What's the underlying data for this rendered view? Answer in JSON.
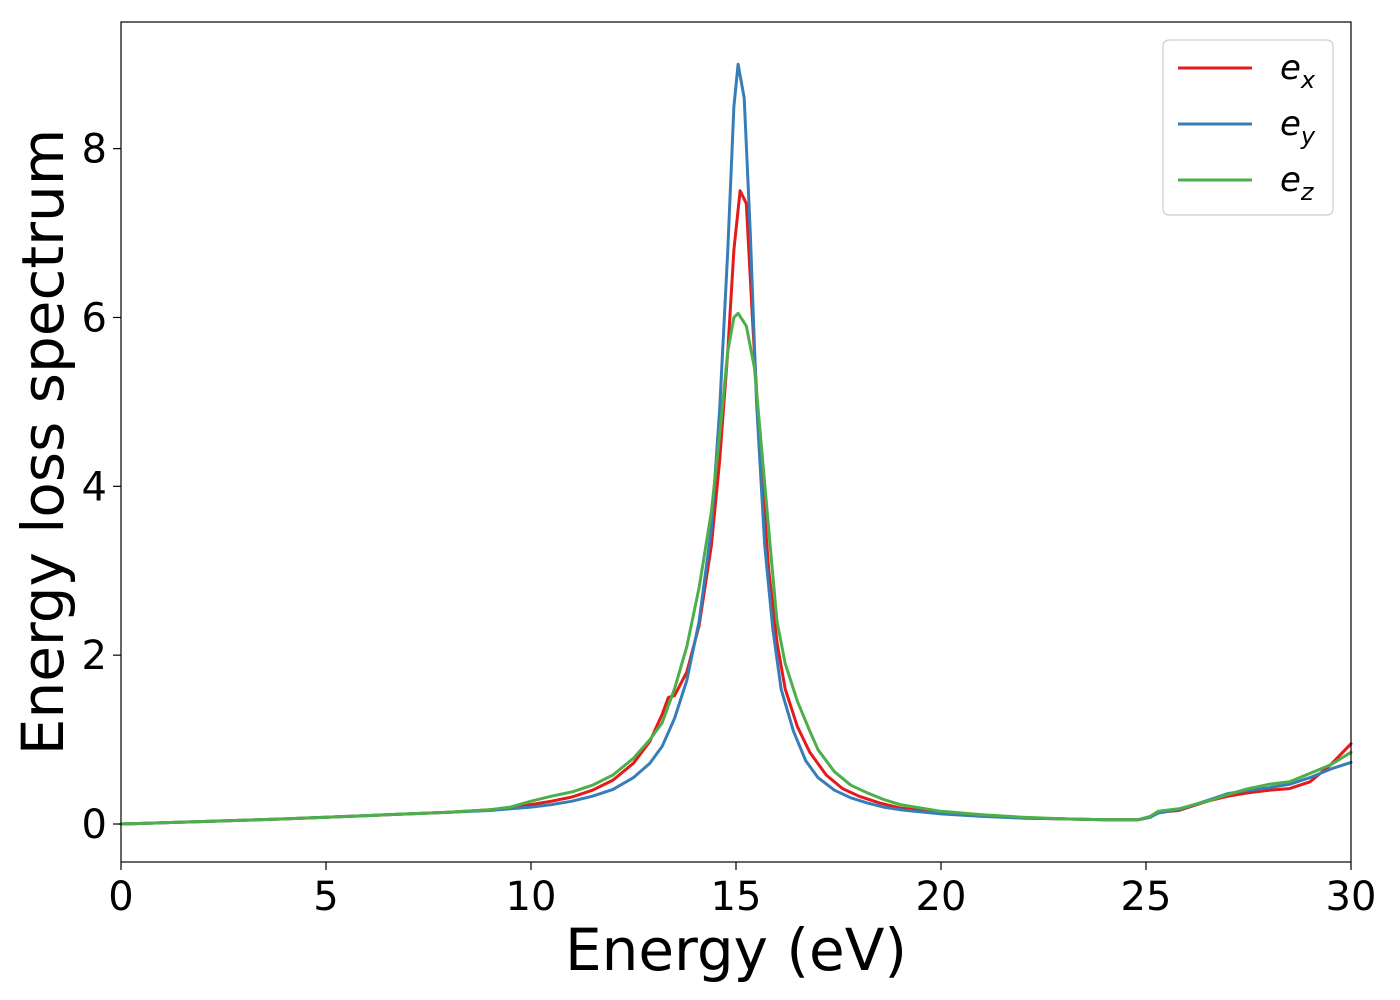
{
  "chart_data": {
    "type": "line",
    "title": "",
    "xlabel": "Energy (eV)",
    "ylabel": "Energy loss spectrum",
    "xlim": [
      0,
      30
    ],
    "ylim": [
      -0.45,
      9.5
    ],
    "xticks": [
      0,
      5,
      10,
      15,
      20,
      25,
      30
    ],
    "yticks": [
      0,
      2,
      4,
      6,
      8
    ],
    "grid": false,
    "legend_position": "top-right",
    "series": [
      {
        "name": "e",
        "subscript": "x",
        "color": "#e41a1c",
        "x": [
          0,
          2,
          4,
          5,
          6,
          7,
          8,
          9,
          9.5,
          10,
          10.5,
          11,
          11.5,
          12,
          12.5,
          12.9,
          13.2,
          13.35,
          13.5,
          13.8,
          14.1,
          14.4,
          14.6,
          14.8,
          14.95,
          15.1,
          15.25,
          15.4,
          15.6,
          15.8,
          16.0,
          16.2,
          16.5,
          16.8,
          17.2,
          17.6,
          18.0,
          18.5,
          19.0,
          20.0,
          21.0,
          22.0,
          23.0,
          24.0,
          24.8,
          25.1,
          25.3,
          25.8,
          26.5,
          27.0,
          27.5,
          28.0,
          28.5,
          29.0,
          29.5,
          30.0
        ],
        "y": [
          0,
          0.03,
          0.06,
          0.08,
          0.1,
          0.12,
          0.14,
          0.17,
          0.19,
          0.23,
          0.27,
          0.32,
          0.4,
          0.52,
          0.72,
          0.98,
          1.3,
          1.5,
          1.52,
          1.8,
          2.35,
          3.3,
          4.3,
          5.6,
          6.8,
          7.5,
          7.35,
          6.0,
          4.3,
          3.0,
          2.15,
          1.6,
          1.15,
          0.85,
          0.58,
          0.42,
          0.33,
          0.25,
          0.19,
          0.13,
          0.1,
          0.07,
          0.06,
          0.05,
          0.05,
          0.08,
          0.14,
          0.16,
          0.27,
          0.33,
          0.37,
          0.4,
          0.42,
          0.5,
          0.7,
          0.95
        ]
      },
      {
        "name": "e",
        "subscript": "y",
        "color": "#377eb8",
        "x": [
          0,
          2,
          4,
          5,
          6,
          7,
          8,
          9,
          9.5,
          10,
          10.5,
          11,
          11.5,
          12,
          12.5,
          12.9,
          13.2,
          13.5,
          13.8,
          14.1,
          14.4,
          14.6,
          14.8,
          14.95,
          15.05,
          15.2,
          15.35,
          15.5,
          15.7,
          15.9,
          16.1,
          16.4,
          16.7,
          17.0,
          17.4,
          17.8,
          18.2,
          18.6,
          19.0,
          20.0,
          21.0,
          22.0,
          23.0,
          24.0,
          24.8,
          25.1,
          25.3,
          25.8,
          26.5,
          27.0,
          27.5,
          28.0,
          28.5,
          29.0,
          29.5,
          30.0
        ],
        "y": [
          0,
          0.03,
          0.06,
          0.08,
          0.1,
          0.12,
          0.14,
          0.16,
          0.18,
          0.2,
          0.23,
          0.27,
          0.33,
          0.41,
          0.55,
          0.72,
          0.92,
          1.25,
          1.7,
          2.4,
          3.5,
          4.9,
          6.8,
          8.5,
          9.0,
          8.6,
          7.0,
          5.0,
          3.3,
          2.3,
          1.6,
          1.1,
          0.75,
          0.55,
          0.4,
          0.31,
          0.25,
          0.2,
          0.17,
          0.12,
          0.09,
          0.07,
          0.06,
          0.05,
          0.05,
          0.08,
          0.13,
          0.17,
          0.28,
          0.36,
          0.4,
          0.43,
          0.47,
          0.55,
          0.65,
          0.73
        ]
      },
      {
        "name": "e",
        "subscript": "z",
        "color": "#4daf4a",
        "x": [
          0,
          2,
          4,
          5,
          6,
          7,
          8,
          9,
          9.5,
          10,
          10.5,
          11,
          11.5,
          12,
          12.5,
          12.9,
          13.2,
          13.5,
          13.8,
          14.1,
          14.4,
          14.6,
          14.8,
          14.95,
          15.05,
          15.25,
          15.45,
          15.65,
          15.85,
          16.0,
          16.2,
          16.5,
          16.8,
          17.0,
          17.4,
          17.8,
          18.2,
          18.6,
          19.0,
          20.0,
          21.0,
          22.0,
          23.0,
          24.0,
          24.8,
          25.1,
          25.3,
          25.8,
          26.5,
          27.0,
          27.5,
          28.0,
          28.5,
          29.0,
          29.5,
          30.0
        ],
        "y": [
          0,
          0.03,
          0.06,
          0.08,
          0.1,
          0.12,
          0.14,
          0.17,
          0.2,
          0.27,
          0.33,
          0.38,
          0.46,
          0.58,
          0.78,
          1.0,
          1.2,
          1.6,
          2.1,
          2.8,
          3.7,
          4.6,
          5.6,
          6.0,
          6.05,
          5.9,
          5.4,
          4.3,
          3.2,
          2.4,
          1.9,
          1.45,
          1.1,
          0.88,
          0.62,
          0.46,
          0.37,
          0.29,
          0.23,
          0.15,
          0.11,
          0.08,
          0.06,
          0.05,
          0.05,
          0.09,
          0.15,
          0.18,
          0.27,
          0.35,
          0.42,
          0.47,
          0.5,
          0.6,
          0.7,
          0.85
        ]
      }
    ]
  }
}
